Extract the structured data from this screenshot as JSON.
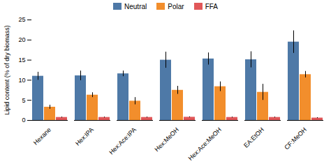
{
  "chart_data": {
    "type": "bar",
    "categories": [
      "Hexane",
      "Hex:IPA",
      "Hex:Ace:IPA",
      "Hex:MeOH",
      "Hex:Ace:MeOH",
      "EA:EtOH",
      "CF:MeOH"
    ],
    "series": [
      {
        "name": "Neutral",
        "values": [
          11.0,
          11.1,
          11.6,
          15.0,
          15.3,
          15.1,
          19.5
        ],
        "errors": [
          1.0,
          1.2,
          0.7,
          2.0,
          1.5,
          2.0,
          2.8
        ]
      },
      {
        "name": "Polar",
        "values": [
          3.3,
          6.3,
          4.8,
          7.5,
          8.4,
          7.0,
          11.4
        ],
        "errors": [
          0.5,
          0.6,
          0.9,
          1.0,
          1.2,
          2.0,
          0.8
        ]
      },
      {
        "name": "FFA",
        "values": [
          0.75,
          0.75,
          0.75,
          0.8,
          0.75,
          0.75,
          0.6
        ],
        "errors": [
          0.1,
          0.1,
          0.1,
          0.1,
          0.1,
          0.1,
          0.1
        ]
      }
    ],
    "ylabel": "Lipid content (% of dry biomass)",
    "ylim": [
      0,
      25
    ],
    "yticks": [
      0,
      5,
      10,
      15,
      20,
      25
    ],
    "grid": false,
    "legend": "top"
  }
}
